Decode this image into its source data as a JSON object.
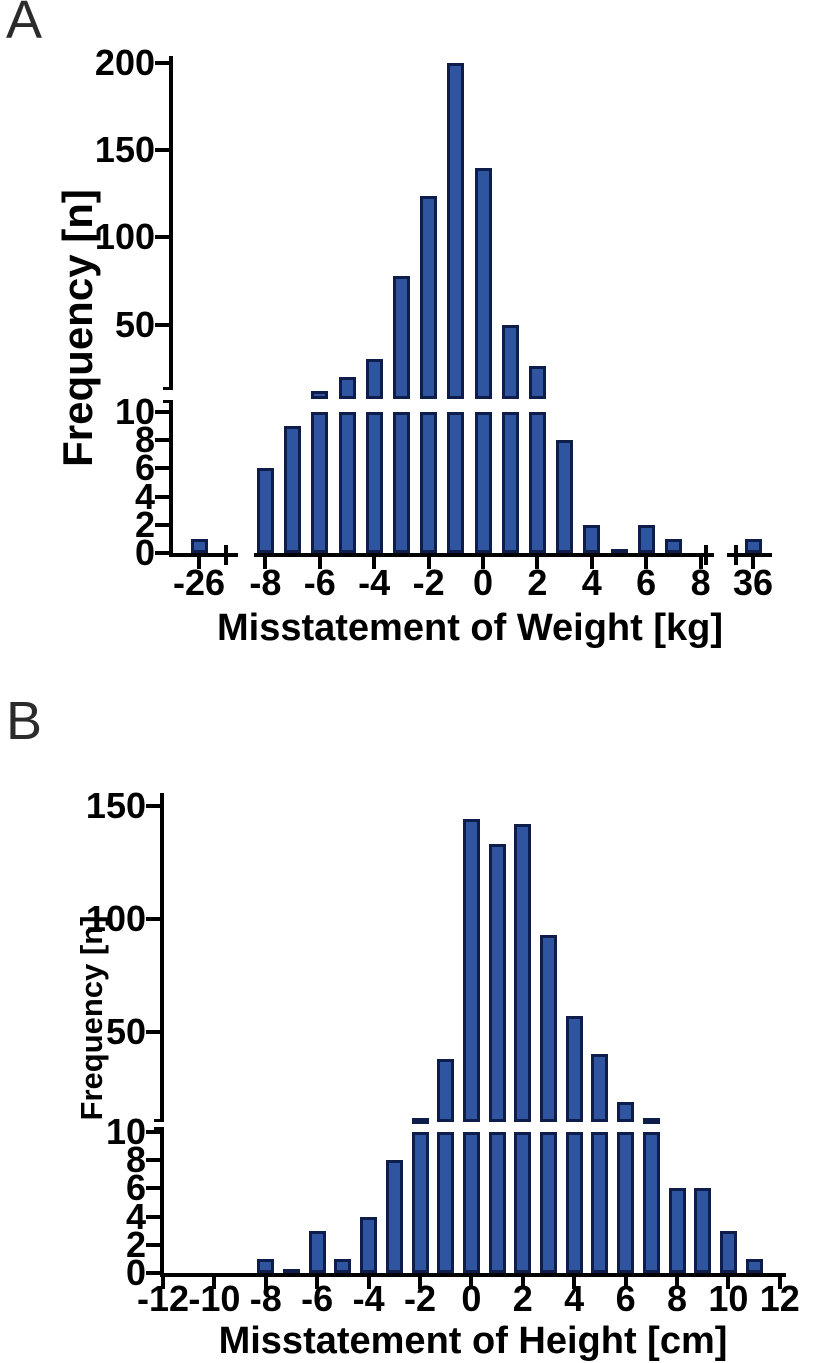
{
  "figure": {
    "panels": [
      {
        "panel_label": "A",
        "x_axis_title": "Misstatement of Weight [kg]",
        "y_axis_title": "Frequency [n]",
        "break_marker": "+"
      },
      {
        "panel_label": "B",
        "x_axis_title": "Misstatement of Height [cm]",
        "y_axis_title": "Frequency [n]",
        "break_marker": "+"
      }
    ]
  },
  "chart_data": [
    {
      "type": "bar",
      "panel": "A",
      "title": "",
      "xlabel": "Misstatement of Weight [kg]",
      "ylabel": "Frequency [n]",
      "x": [
        -26,
        -8,
        -7,
        -6,
        -5,
        -4,
        -3,
        -2,
        -1,
        0,
        1,
        2,
        3,
        4,
        5,
        6,
        7,
        36
      ],
      "values": [
        1,
        6,
        9,
        12,
        20,
        30,
        78,
        124,
        200,
        140,
        50,
        26,
        8,
        2,
        0,
        2,
        1,
        1
      ],
      "dash_at": [
        5
      ],
      "x_tick_labels": [
        "-26",
        "-8",
        "-6",
        "-4",
        "-2",
        "0",
        "2",
        "4",
        "6",
        "8",
        "36"
      ],
      "y_ticks_upper": [
        200,
        150,
        100,
        50
      ],
      "y_ticks_lower": [
        10,
        8,
        6,
        4,
        2,
        0
      ],
      "y_axis_break": [
        10,
        12
      ],
      "x_axis_breaks": [
        [
          -26,
          -8
        ],
        [
          8,
          36
        ]
      ],
      "ylim": [
        0,
        200
      ],
      "grid": false,
      "legend": "none"
    },
    {
      "type": "bar",
      "panel": "B",
      "title": "",
      "xlabel": "Misstatement of Height [cm]",
      "ylabel": "Frequency [n]",
      "x": [
        -8,
        -7,
        -6,
        -5,
        -4,
        -3,
        -2,
        -1,
        0,
        1,
        2,
        3,
        4,
        5,
        6,
        7,
        8,
        9,
        10,
        11
      ],
      "values": [
        1,
        0,
        3,
        1,
        4,
        8,
        12,
        38,
        144,
        133,
        142,
        93,
        57,
        40,
        19,
        12,
        6,
        6,
        3,
        1
      ],
      "dash_at": [
        -7
      ],
      "x_tick_labels": [
        "-12",
        "-10",
        "-8",
        "-6",
        "-4",
        "-2",
        "0",
        "2",
        "4",
        "6",
        "8",
        "10",
        "12"
      ],
      "y_ticks_upper": [
        150,
        100,
        50
      ],
      "y_ticks_lower": [
        10,
        8,
        6,
        4,
        2,
        0
      ],
      "y_axis_break": [
        10,
        12
      ],
      "x_axis_breaks": [],
      "ylim": [
        0,
        150
      ],
      "grid": false,
      "legend": "none"
    }
  ],
  "colors": {
    "bar_fill": "#2f55a0",
    "bar_stroke": "#0e1d4a",
    "axis": "#000000",
    "panel_letter": "#2b2b2b"
  }
}
